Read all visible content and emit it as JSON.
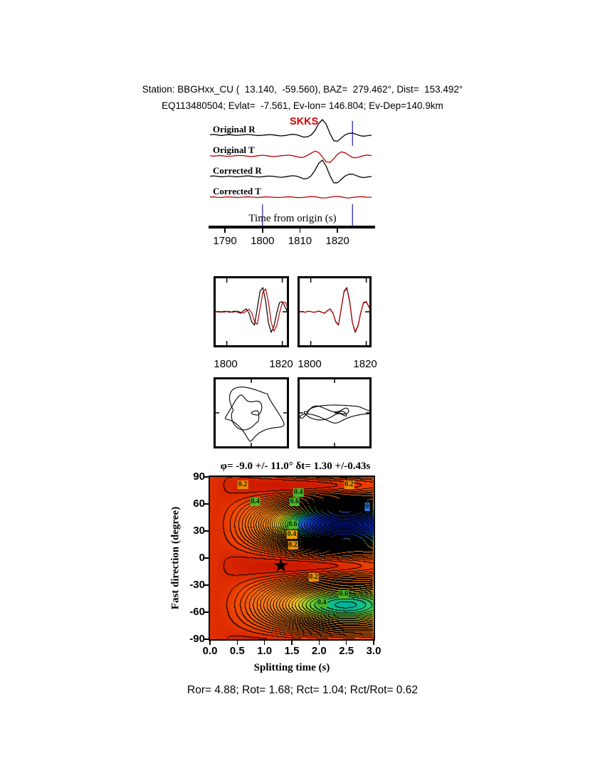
{
  "header": {
    "line1": "Station: BBGHxx_CU (  13.140,  -59.560), BAZ=  279.462°, Dist=  153.492°",
    "line2": "EQ113480504; Evlat=  -7.561, Ev-lon= 146.804; Ev-Dep=140.9km"
  },
  "waveform_panel": {
    "phase_label": "SKKS",
    "trace_labels": [
      "Original R",
      "Original T",
      "Corrected R",
      "Corrected T"
    ],
    "xlabel": "Time from origin (s)",
    "xticks": [
      "1790",
      "1800",
      "1810",
      "1820"
    ]
  },
  "comparison_panel": {
    "left_xticks": [
      "1800",
      "1820"
    ],
    "right_xticks": [
      "1800",
      "1820"
    ]
  },
  "contour_panel": {
    "title": "φ= -9.0 +/- 11.0°  δt= 1.30 +/-0.43s",
    "ylabel": "Fast direction (degree)",
    "xlabel": "Splitting time (s)",
    "yticks": [
      "90",
      "60",
      "30",
      "0",
      "-30",
      "-60",
      "-90"
    ],
    "xticks": [
      "0.0",
      "0.5",
      "1.0",
      "1.5",
      "2.0",
      "2.5",
      "3.0"
    ]
  },
  "footer": {
    "stats": "Ror= 4.88; Rot= 1.68; Rct= 1.04; Rct/Rot= 0.62"
  },
  "chart_data": [
    {
      "id": "waveforms",
      "type": "line",
      "xlabel": "Time from origin (s)",
      "x_start": 1786,
      "x_step": 1,
      "xticks": [
        1790,
        1800,
        1810,
        1820
      ],
      "window_markers": [
        {
          "t": 1800,
          "segments": [
            [
              127,
              158
            ]
          ]
        },
        {
          "t": 1824,
          "segments": [
            [
              10,
              45
            ],
            [
              127,
              158
            ]
          ]
        }
      ],
      "series": [
        {
          "name": "Original R",
          "color": "#000000",
          "values": [
            0.03,
            0.05,
            0.02,
            -0.02,
            0.01,
            0.04,
            0.02,
            -0.01,
            0.01,
            0.03,
            0.05,
            0.03,
            0.0,
            -0.02,
            0.0,
            0.02,
            0.04,
            0.02,
            -0.02,
            -0.04,
            -0.02,
            0.03,
            0.06,
            0.04,
            -0.04,
            -0.12,
            -0.1,
            0.02,
            0.3,
            0.75,
            1.0,
            0.7,
            0.1,
            -0.35,
            -0.38,
            -0.18,
            0.02,
            0.12,
            0.14,
            0.06,
            -0.03,
            -0.06,
            -0.03,
            0.0
          ]
        },
        {
          "name": "Original T",
          "color": "#c00000",
          "values": [
            0.01,
            -0.02,
            0.01,
            0.02,
            -0.01,
            -0.03,
            -0.01,
            0.02,
            0.03,
            0.01,
            -0.02,
            -0.04,
            -0.02,
            0.02,
            0.04,
            0.02,
            -0.02,
            -0.04,
            -0.02,
            0.01,
            0.03,
            0.05,
            0.02,
            -0.04,
            -0.1,
            -0.08,
            0.04,
            0.18,
            0.3,
            0.22,
            -0.08,
            -0.38,
            -0.42,
            -0.18,
            0.1,
            0.26,
            0.2,
            0.04,
            -0.1,
            -0.12,
            -0.05,
            0.02,
            0.05,
            0.02
          ]
        },
        {
          "name": "Corrected R",
          "color": "#000000",
          "values": [
            0.02,
            0.04,
            0.01,
            -0.02,
            0.0,
            0.03,
            0.01,
            -0.02,
            0.0,
            0.02,
            0.04,
            0.02,
            -0.01,
            -0.03,
            -0.01,
            0.02,
            0.03,
            0.01,
            -0.03,
            -0.05,
            -0.02,
            0.02,
            0.05,
            0.03,
            -0.05,
            -0.15,
            -0.12,
            0.05,
            0.4,
            0.85,
            1.05,
            0.65,
            0.05,
            -0.4,
            -0.4,
            -0.18,
            0.03,
            0.14,
            0.15,
            0.06,
            -0.03,
            -0.07,
            -0.03,
            0.0
          ]
        },
        {
          "name": "Corrected T",
          "color": "#c00000",
          "values": [
            0.01,
            0.02,
            -0.01,
            -0.02,
            0.01,
            0.02,
            0.0,
            -0.02,
            -0.01,
            0.01,
            0.02,
            0.01,
            -0.01,
            -0.02,
            0.0,
            0.02,
            0.01,
            -0.01,
            -0.02,
            -0.01,
            0.01,
            0.02,
            0.01,
            -0.02,
            -0.03,
            -0.01,
            0.02,
            0.04,
            0.03,
            -0.02,
            -0.05,
            -0.04,
            0.0,
            0.04,
            0.05,
            0.02,
            -0.03,
            -0.05,
            -0.02,
            0.01,
            0.03,
            0.02,
            0.0,
            -0.01
          ]
        }
      ]
    },
    {
      "id": "compare-left",
      "type": "line",
      "x_start": 1796,
      "x_step": 1,
      "xticks": [
        1800,
        1820
      ],
      "series": [
        {
          "name": "fast",
          "color": "#000000",
          "values": [
            0.0,
            0.01,
            -0.02,
            0.02,
            0.01,
            -0.02,
            0.0,
            0.03,
            -0.02,
            -0.06,
            0.04,
            0.12,
            -0.05,
            -0.42,
            -0.55,
            0.15,
            0.85,
            1.0,
            0.45,
            -0.45,
            -0.85,
            -0.6,
            -0.05,
            0.38,
            0.42,
            0.2,
            -0.02,
            -0.14,
            -0.12,
            -0.05,
            0.02,
            0.04,
            0.02,
            0.0,
            -0.01,
            0.0
          ]
        },
        {
          "name": "slow",
          "color": "#c00000",
          "values": [
            0.0,
            0.0,
            0.01,
            -0.02,
            0.02,
            0.01,
            -0.02,
            0.0,
            0.03,
            -0.02,
            -0.06,
            0.03,
            0.11,
            -0.05,
            -0.4,
            -0.52,
            0.14,
            0.8,
            0.95,
            0.42,
            -0.43,
            -0.8,
            -0.57,
            -0.05,
            0.36,
            0.4,
            0.19,
            -0.02,
            -0.13,
            -0.11,
            -0.05,
            0.02,
            0.04,
            0.02,
            0.0,
            0.0
          ]
        }
      ]
    },
    {
      "id": "compare-right",
      "type": "line",
      "x_start": 1796,
      "x_step": 1,
      "xticks": [
        1800,
        1820
      ],
      "series": [
        {
          "name": "fast",
          "color": "#000000",
          "values": [
            0.0,
            0.01,
            -0.02,
            0.02,
            0.01,
            -0.02,
            0.0,
            0.03,
            -0.02,
            -0.06,
            0.04,
            0.12,
            -0.05,
            -0.42,
            -0.55,
            0.15,
            0.85,
            1.0,
            0.45,
            -0.45,
            -0.85,
            -0.6,
            -0.05,
            0.38,
            0.42,
            0.2,
            -0.02,
            -0.14,
            -0.12,
            -0.05,
            0.02,
            0.04,
            0.02,
            0.0,
            -0.01,
            0.0
          ]
        },
        {
          "name": "slow corrected",
          "color": "#c00000",
          "values": [
            0.0,
            0.01,
            -0.02,
            0.02,
            0.01,
            -0.02,
            0.0,
            0.02,
            -0.02,
            -0.05,
            0.05,
            0.11,
            -0.06,
            -0.4,
            -0.53,
            0.16,
            0.82,
            0.96,
            0.42,
            -0.44,
            -0.82,
            -0.58,
            -0.04,
            0.36,
            0.4,
            0.19,
            -0.03,
            -0.13,
            -0.11,
            -0.04,
            0.02,
            0.04,
            0.02,
            0.0,
            -0.01,
            0.0
          ]
        }
      ]
    },
    {
      "id": "particle-left",
      "type": "scatter",
      "name": "particle motion original",
      "params": {
        "cycles": 2.4,
        "phase_deg": 85,
        "rot_deg": -15,
        "ripple": 0.18,
        "sx": 42,
        "sy": 40
      }
    },
    {
      "id": "particle-right",
      "type": "scatter",
      "name": "particle motion corrected",
      "params": {
        "cycles": 2.4,
        "phase_deg": 22,
        "rot_deg": -47,
        "ripple": 0.15,
        "sx": 44,
        "sy": 40
      }
    },
    {
      "id": "splitting-map",
      "type": "heatmap",
      "title": "φ= -9.0 +/- 11.0°  δt= 1.30 +/-0.43s",
      "xlabel": "Splitting time (s)",
      "ylabel": "Fast direction (degree)",
      "xlim": [
        0,
        3
      ],
      "ylim": [
        -90,
        90
      ],
      "xticks": [
        0.0,
        0.5,
        1.0,
        1.5,
        2.0,
        2.5,
        3.0
      ],
      "yticks": [
        90,
        60,
        30,
        0,
        -30,
        -60,
        -90
      ],
      "best": {
        "phi": -9.0,
        "phi_err": 11.0,
        "dt": 1.3,
        "dt_err": 0.43
      },
      "model": {
        "phi0": -9,
        "dt_period": 4.8,
        "asym": 0.25,
        "bowl": 0.08,
        "contour_step": 0.025,
        "color_stops": [
          [
            0.0,
            "#cc1800"
          ],
          [
            0.07,
            "#f04400"
          ],
          [
            0.18,
            "#fa7014"
          ],
          [
            0.4,
            "#fc9422"
          ],
          [
            0.5,
            "#ffd028"
          ],
          [
            0.6,
            "#78d232"
          ],
          [
            0.7,
            "#00be96"
          ],
          [
            0.78,
            "#1e64f0"
          ],
          [
            0.88,
            "#0a28aa"
          ],
          [
            1.0,
            "#000a50"
          ]
        ]
      },
      "annotations": [
        {
          "text": "0.2",
          "dt": 0.6,
          "phi": 81,
          "bg": "#f08c00"
        },
        {
          "text": "0.2",
          "dt": 2.55,
          "phi": 81,
          "bg": "#f08c00"
        },
        {
          "text": "0.4",
          "dt": 0.83,
          "phi": 62,
          "bg": "#50b428"
        },
        {
          "text": "0.6",
          "dt": 1.55,
          "phi": 62,
          "bg": "#50b428"
        },
        {
          "text": "0.4",
          "dt": 1.62,
          "phi": 73,
          "bg": "#50b428"
        },
        {
          "text": "0",
          "dt": 2.88,
          "phi": 57,
          "bg": "#2878f0"
        },
        {
          "text": "0.6",
          "dt": 1.52,
          "phi": 37,
          "bg": "#50b428"
        },
        {
          "text": "0.4",
          "dt": 1.5,
          "phi": 26,
          "bg": "#f0a000"
        },
        {
          "text": "0.2",
          "dt": 1.52,
          "phi": 14,
          "bg": "#f08c00"
        },
        {
          "text": "0.2",
          "dt": 1.9,
          "phi": -21,
          "bg": "#f08c00"
        },
        {
          "text": "0.6",
          "dt": 2.45,
          "phi": -40,
          "bg": "#50b428"
        },
        {
          "text": "0.4",
          "dt": 2.05,
          "phi": -50,
          "bg": "#50b428"
        }
      ]
    }
  ]
}
